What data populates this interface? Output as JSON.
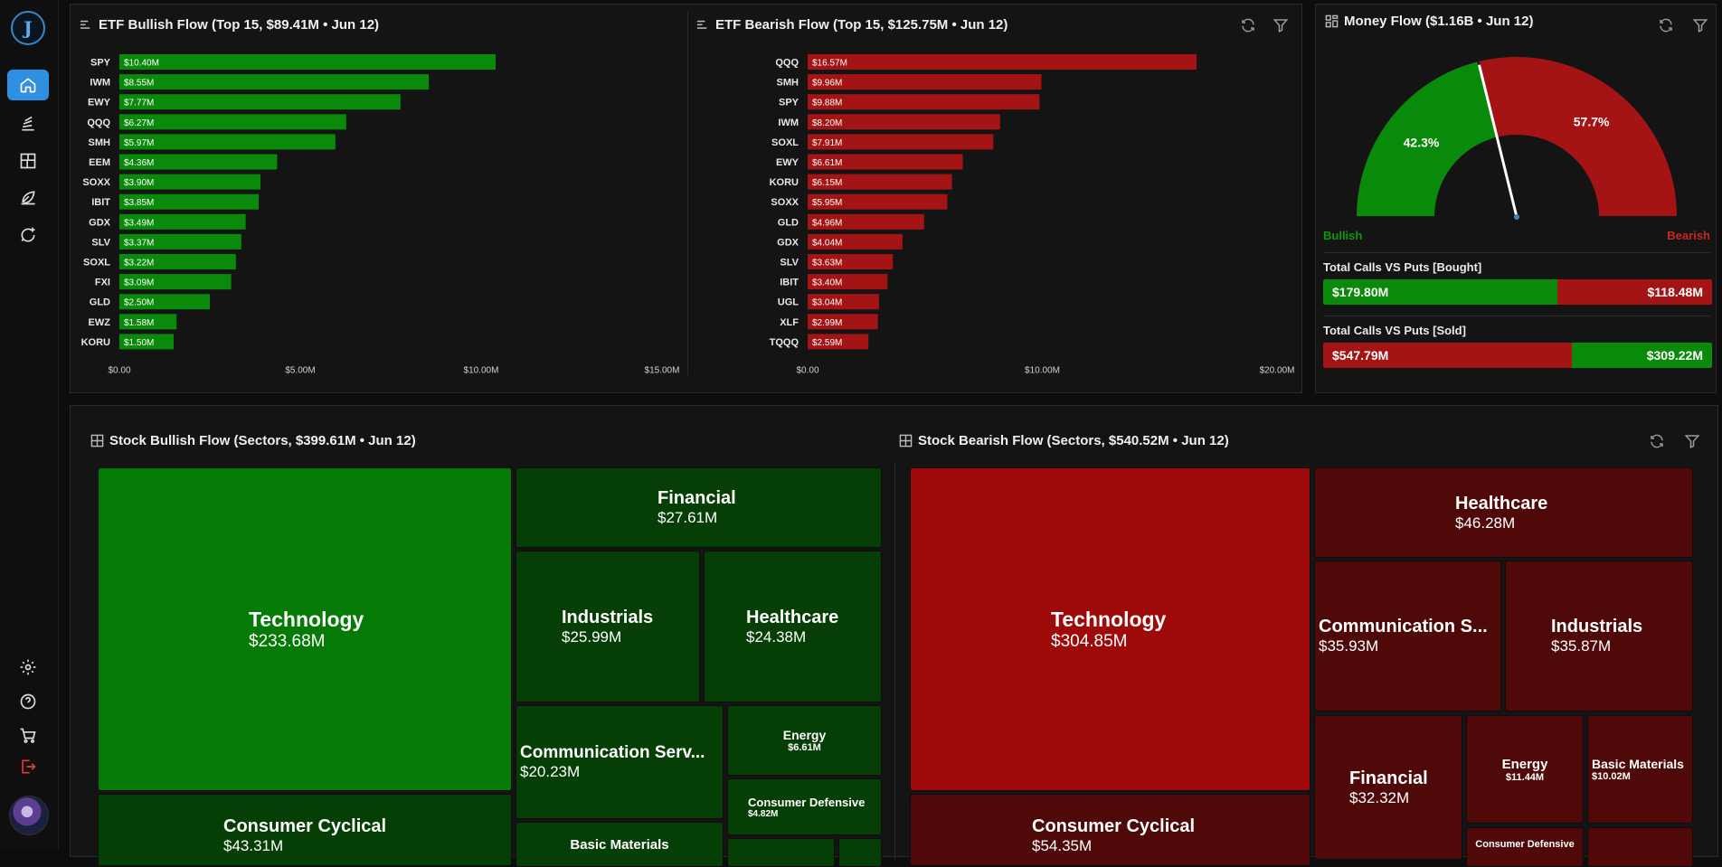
{
  "etf_bullish": {
    "title": "ETF Bullish Flow (Top 15, $89.41M • Jun 12)",
    "chart_data": {
      "type": "bar",
      "orientation": "horizontal",
      "categories": [
        "SPY",
        "IWM",
        "EWY",
        "QQQ",
        "SMH",
        "EEM",
        "SOXX",
        "IBIT",
        "GDX",
        "SLV",
        "SOXL",
        "FXI",
        "GLD",
        "EWZ",
        "KORU"
      ],
      "values": [
        10.4,
        8.55,
        7.77,
        6.27,
        5.97,
        4.36,
        3.9,
        3.85,
        3.49,
        3.37,
        3.22,
        3.09,
        2.5,
        1.58,
        1.5
      ],
      "labels": [
        "$10.40M",
        "$8.55M",
        "$7.77M",
        "$6.27M",
        "$5.97M",
        "$4.36M",
        "$3.90M",
        "$3.85M",
        "$3.49M",
        "$3.37M",
        "$3.22M",
        "$3.09M",
        "$2.50M",
        "$1.58M",
        "$1.50M"
      ],
      "xlim": [
        0,
        15.5
      ],
      "ticks": [
        0,
        5,
        10,
        15
      ],
      "tick_labels": [
        "$0.00",
        "$5.00M",
        "$10.00M",
        "$15.00M"
      ],
      "color": "#0a8a0a"
    }
  },
  "etf_bearish": {
    "title": "ETF Bearish Flow (Top 15, $125.75M • Jun 12)",
    "chart_data": {
      "type": "bar",
      "orientation": "horizontal",
      "categories": [
        "QQQ",
        "SMH",
        "SPY",
        "IWM",
        "SOXL",
        "EWY",
        "KORU",
        "SOXX",
        "GLD",
        "GDX",
        "SLV",
        "IBIT",
        "UGL",
        "XLF",
        "TQQQ"
      ],
      "values": [
        16.57,
        9.96,
        9.88,
        8.2,
        7.91,
        6.61,
        6.15,
        5.95,
        4.96,
        4.04,
        3.63,
        3.4,
        3.04,
        2.99,
        2.59
      ],
      "labels": [
        "$16.57M",
        "$9.96M",
        "$9.88M",
        "$8.20M",
        "$7.91M",
        "$6.61M",
        "$6.15M",
        "$5.95M",
        "$4.96M",
        "$4.04M",
        "$3.63M",
        "$3.40M",
        "$3.04M",
        "$2.99M",
        "$2.59M"
      ],
      "xlim": [
        0,
        20.5
      ],
      "ticks": [
        0,
        10,
        20
      ],
      "tick_labels": [
        "$0.00",
        "$10.00M",
        "$20.00M"
      ],
      "color": "#a51414"
    }
  },
  "money_flow": {
    "title": "Money Flow ($1.16B • Jun 12)",
    "gauge": {
      "bullish_pct": 42.3,
      "bearish_pct": 57.7,
      "bullish_label": "42.3%",
      "bearish_label": "57.7%",
      "bullish_color": "#0a8a0a",
      "bearish_color": "#a51414"
    },
    "legend_bullish": "Bullish",
    "legend_bearish": "Bearish",
    "bought": {
      "label": "Total Calls VS Puts [Bought]",
      "calls": "$179.80M",
      "puts": "$118.48M",
      "calls_value": 179.8,
      "puts_value": 118.48
    },
    "sold": {
      "label": "Total Calls VS Puts [Sold]",
      "calls": "$547.79M",
      "puts": "$309.22M",
      "calls_value": 547.79,
      "puts_value": 309.22
    }
  },
  "stock_bullish": {
    "title": "Stock Bullish Flow (Sectors, $399.61M • Jun 12)",
    "tiles": [
      {
        "name": "Technology",
        "value": "$233.68M",
        "color": "#057a05"
      },
      {
        "name": "Financial",
        "value": "$27.61M",
        "color": "#063f06"
      },
      {
        "name": "Industrials",
        "value": "$25.99M",
        "color": "#063f06"
      },
      {
        "name": "Healthcare",
        "value": "$24.38M",
        "color": "#063f06"
      },
      {
        "name": "Communication Serv...",
        "value": "$20.23M",
        "color": "#063f06"
      },
      {
        "name": "Energy",
        "value": "$6.61M",
        "color": "#063f06"
      },
      {
        "name": "Consumer Defensive",
        "value": "$4.82M",
        "color": "#063f06"
      },
      {
        "name": "Consumer Cyclical",
        "value": "$43.31M",
        "color": "#063f06"
      },
      {
        "name": "Basic Materials",
        "value": "",
        "color": "#063f06"
      },
      {
        "name": "",
        "value": "",
        "color": "#063f06"
      },
      {
        "name": "",
        "value": "",
        "color": "#063f06"
      }
    ]
  },
  "stock_bearish": {
    "title": "Stock Bearish Flow (Sectors, $540.52M • Jun 12)",
    "tiles": [
      {
        "name": "Technology",
        "value": "$304.85M",
        "color": "#9e0a0a"
      },
      {
        "name": "Healthcare",
        "value": "$46.28M",
        "color": "#4f0909"
      },
      {
        "name": "Communication S...",
        "value": "$35.93M",
        "color": "#4f0909"
      },
      {
        "name": "Industrials",
        "value": "$35.87M",
        "color": "#4f0909"
      },
      {
        "name": "Financial",
        "value": "$32.32M",
        "color": "#4f0909"
      },
      {
        "name": "Energy",
        "value": "$11.44M",
        "color": "#4f0909"
      },
      {
        "name": "Basic Materials",
        "value": "$10.02M",
        "color": "#4f0909"
      },
      {
        "name": "Consumer Cyclical",
        "value": "$54.35M",
        "color": "#4f0909"
      },
      {
        "name": "Consumer Defensive",
        "value": "",
        "color": "#4f0909"
      },
      {
        "name": "",
        "value": "",
        "color": "#4f0909"
      }
    ]
  }
}
